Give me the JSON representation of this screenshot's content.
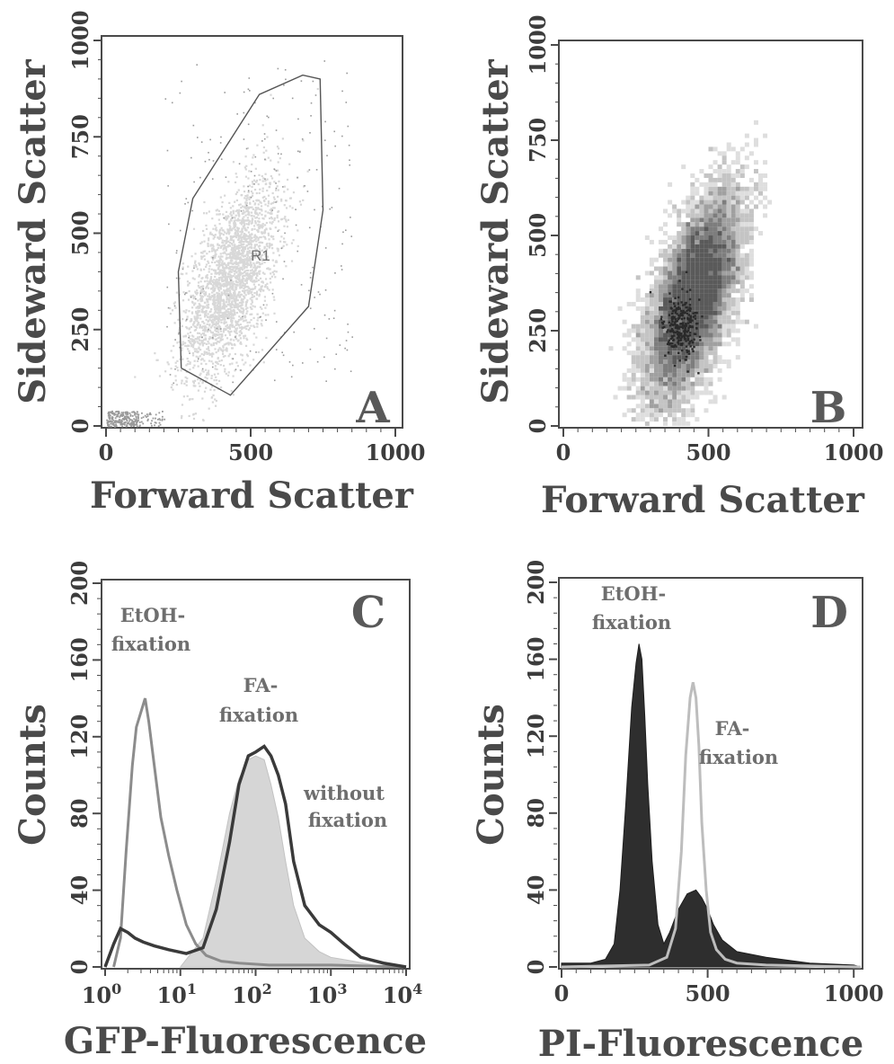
{
  "colors": {
    "axis": "#4a4a4a",
    "scatter_light": "#d8d8d8",
    "scatter_mid": "#9a9a9a",
    "scatter_dark": "#2a2a2a",
    "etoh_curve": "#8c8c8c",
    "fa_curve": "#3a3a3a",
    "without_fill": "#d6d6d6",
    "pi_etoh_fill": "#2e2e2e",
    "pi_fa_line": "#bdbdbd"
  },
  "chart_data": [
    {
      "panel": "A",
      "type": "scatter",
      "xlabel": "Forward Scatter",
      "ylabel": "Sideward Scatter",
      "xlim": [
        0,
        1000
      ],
      "ylim": [
        0,
        1000
      ],
      "xticks": [
        "0",
        "500",
        "1000"
      ],
      "yticks": [
        "0",
        "250",
        "500",
        "750",
        "1000"
      ],
      "gate": {
        "label": "R1",
        "polygon": [
          [
            260,
            150
          ],
          [
            430,
            80
          ],
          [
            700,
            310
          ],
          [
            750,
            560
          ],
          [
            740,
            900
          ],
          [
            680,
            910
          ],
          [
            530,
            860
          ],
          [
            300,
            590
          ],
          [
            250,
            400
          ],
          [
            260,
            150
          ]
        ]
      },
      "population": {
        "center": [
          430,
          380
        ],
        "spread": [
          150,
          190
        ]
      },
      "debris": {
        "x_range": [
          0,
          200
        ],
        "y_range": [
          0,
          40
        ]
      }
    },
    {
      "panel": "B",
      "type": "heatmap",
      "xlabel": "Forward Scatter",
      "ylabel": "Sideward Scatter",
      "xlim": [
        0,
        1000
      ],
      "ylim": [
        0,
        1000
      ],
      "xticks": [
        "0",
        "500",
        "1000"
      ],
      "yticks": [
        "0",
        "250",
        "500",
        "750",
        "1000"
      ],
      "population": {
        "center": [
          450,
          340
        ],
        "spread": [
          140,
          200
        ]
      },
      "dense_core": {
        "center": [
          400,
          260
        ],
        "spread": [
          30,
          45
        ]
      }
    },
    {
      "panel": "C",
      "type": "line",
      "xlabel": "GFP-Fluorescence",
      "ylabel": "Counts",
      "xscale": "log",
      "xlim": [
        1,
        10000
      ],
      "ylim": [
        0,
        200
      ],
      "xticks": [
        {
          "base": "10",
          "exp": "0"
        },
        {
          "base": "10",
          "exp": "1"
        },
        {
          "base": "10",
          "exp": "2"
        },
        {
          "base": "10",
          "exp": "3"
        },
        {
          "base": "10",
          "exp": "4"
        }
      ],
      "yticks": [
        "0",
        "40",
        "80",
        "120",
        "160",
        "200"
      ],
      "series": [
        {
          "name": "EtOH-fixation",
          "x": [
            1.3,
            1.6,
            1.9,
            2.3,
            2.6,
            3.0,
            3.4,
            3.8,
            4.5,
            5.5,
            7.0,
            9.0,
            12,
            16,
            22,
            35,
            60,
            150,
            1000,
            10000
          ],
          "y": [
            0,
            15,
            60,
            105,
            125,
            133,
            140,
            128,
            105,
            78,
            58,
            40,
            22,
            12,
            6,
            3,
            2,
            1,
            1,
            0
          ]
        },
        {
          "name": "FA-fixation",
          "x": [
            1.0,
            1.3,
            1.6,
            2.0,
            2.5,
            3.2,
            4.5,
            7,
            12,
            20,
            30,
            45,
            60,
            80,
            100,
            130,
            160,
            200,
            250,
            320,
            450,
            700,
            1000,
            1500,
            2500,
            5000,
            10000
          ],
          "y": [
            0,
            12,
            20,
            18,
            15,
            13,
            11,
            9,
            7,
            10,
            30,
            65,
            95,
            110,
            112,
            115,
            110,
            100,
            85,
            55,
            32,
            22,
            18,
            12,
            5,
            2,
            0
          ]
        },
        {
          "name": "without fixation",
          "x": [
            10,
            20,
            30,
            45,
            60,
            80,
            100,
            130,
            160,
            200,
            250,
            320,
            450,
            700,
            1000,
            2000,
            5000
          ],
          "y": [
            0,
            15,
            45,
            80,
            98,
            108,
            110,
            108,
            95,
            78,
            55,
            32,
            15,
            8,
            5,
            3,
            0
          ]
        }
      ],
      "annotations": [
        {
          "lines": [
            "EtOH-",
            "fixation"
          ]
        },
        {
          "lines": [
            "FA-",
            "fixation"
          ]
        },
        {
          "lines": [
            "without",
            "fixation"
          ]
        }
      ]
    },
    {
      "panel": "D",
      "type": "area",
      "xlabel": "PI-Fluorescence",
      "ylabel": "Counts",
      "xlim": [
        0,
        1024
      ],
      "ylim": [
        0,
        200
      ],
      "xticks": [
        "0",
        "500",
        "1000"
      ],
      "yticks": [
        "0",
        "40",
        "80",
        "120",
        "160",
        "200"
      ],
      "series": [
        {
          "name": "EtOH-fixation",
          "x": [
            0,
            100,
            150,
            180,
            200,
            220,
            240,
            255,
            265,
            275,
            285,
            295,
            310,
            330,
            350,
            370,
            400,
            430,
            460,
            480,
            500,
            520,
            550,
            600,
            700,
            850,
            1000,
            1024
          ],
          "y": [
            2,
            2,
            4,
            12,
            40,
            85,
            135,
            158,
            168,
            160,
            130,
            95,
            55,
            22,
            12,
            18,
            30,
            38,
            40,
            36,
            30,
            22,
            14,
            8,
            5,
            2,
            1,
            0
          ]
        },
        {
          "name": "FA-fixation",
          "x": [
            0,
            300,
            360,
            390,
            410,
            425,
            440,
            450,
            460,
            470,
            480,
            495,
            510,
            530,
            560,
            600,
            700,
            1024
          ],
          "y": [
            0,
            1,
            5,
            20,
            60,
            110,
            140,
            148,
            140,
            115,
            75,
            40,
            18,
            9,
            4,
            2,
            1,
            0
          ]
        }
      ],
      "annotations": [
        {
          "lines": [
            "EtOH-",
            "fixation"
          ]
        },
        {
          "lines": [
            "FA-",
            "fixation"
          ]
        }
      ]
    }
  ]
}
